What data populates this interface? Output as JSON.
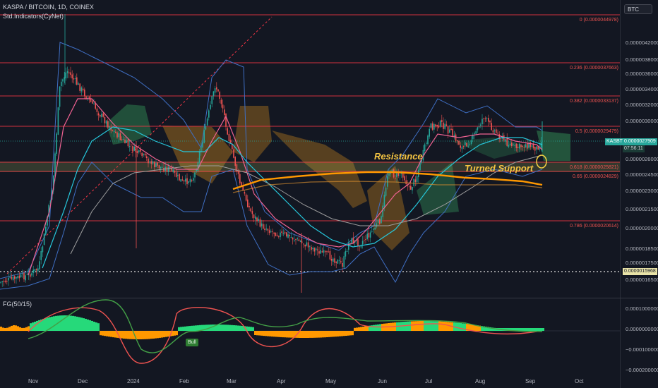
{
  "header": {
    "symbol": "KASPA / BITCOIN, 1D, COINEX",
    "indicators": "Std.Indicators(CyNet)"
  },
  "currency_button": "BTC",
  "annotations": {
    "resistance": "Resistance",
    "turned_support": "Turned Support"
  },
  "price_axis": {
    "ticks": [
      "0.0000042000",
      "0.0000038000",
      "0.0000036000",
      "0.0000034000",
      "0.0000032000",
      "0.0000030000",
      "0.0000026000",
      "0.0000024500",
      "0.0000023000",
      "0.0000021500",
      "0.0000020000",
      "0.0000018500",
      "0.0000017500",
      "0.0000016500"
    ],
    "current_tag_label": "KASBTC",
    "current_value": "0.0000027909",
    "countdown": "07:56:11",
    "marker_value": "0.0000015968"
  },
  "fib_levels": [
    {
      "label": "0 (0.0000044978)",
      "value": 4.4978e-06
    },
    {
      "label": "0.236 (0.0000037663)",
      "value": 3.7663e-06
    },
    {
      "label": "0.382 (0.0000033137)",
      "value": 3.3137e-06
    },
    {
      "label": "0.5 (0.0000029479)",
      "value": 2.9479e-06
    },
    {
      "label": "0.618 (0.0000025821)",
      "value": 2.5821e-06
    },
    {
      "label": "0.65 (0.0000024829)",
      "value": 2.4829e-06
    },
    {
      "label": "0.786 (0.0000020614)",
      "value": 2.0614e-06
    }
  ],
  "oscillator": {
    "title": "FG(50/15)",
    "ticks": [
      "0.0001000000",
      "0.0000000000",
      "−0.0001000000",
      "−0.0002000000"
    ],
    "bull_label": "Bull"
  },
  "time_axis": [
    "Nov",
    "Dec",
    "2024",
    "Feb",
    "Mar",
    "Apr",
    "May",
    "Jun",
    "Jul",
    "Aug",
    "Sep",
    "Oct"
  ],
  "colors": {
    "background": "#131722",
    "bull": "#26a69a",
    "bear": "#ef5350",
    "fib": "#f23645",
    "annotation": "#f5c542",
    "cloud_green": "#2e7d4f",
    "cloud_orange": "#9c6a1e",
    "ma_orange": "#ff9800",
    "osc_green": "#26d97a",
    "osc_orange": "#ff9800"
  }
}
